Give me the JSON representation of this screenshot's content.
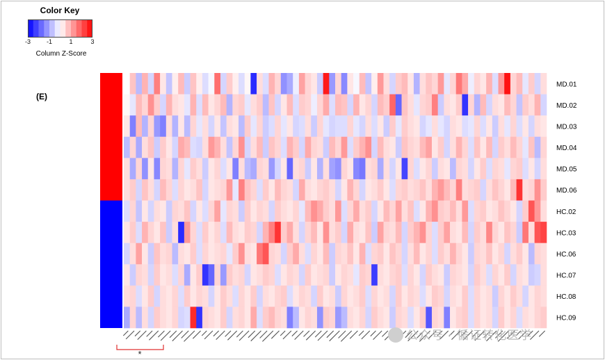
{
  "color_key": {
    "title": "Color Key",
    "ticks": [
      "-3",
      "-1",
      "1",
      "3"
    ],
    "label": "Column Z-Score",
    "low_color": "#0000ff",
    "mid_color": "#ffffff",
    "high_color": "#ff0000"
  },
  "panel_label": "(E)",
  "annotation": "*",
  "watermark": "公众号 · 循证转化医学",
  "chart_data": {
    "type": "heatmap",
    "rows": [
      "MD.01",
      "MD.02",
      "MD.03",
      "MD.04",
      "MD.05",
      "MD.06",
      "HC.02",
      "HC.03",
      "HC.06",
      "HC.07",
      "HC.08",
      "HC.09"
    ],
    "groups": [
      {
        "color": "#ff0000",
        "rows": [
          "MD.01",
          "MD.02",
          "MD.03",
          "MD.04",
          "MD.05",
          "MD.06"
        ]
      },
      {
        "color": "#0000ff",
        "rows": [
          "HC.02",
          "HC.03",
          "HC.06",
          "HC.07",
          "HC.08",
          "HC.09"
        ]
      }
    ],
    "n_columns": 70,
    "column_labels": [],
    "value_range": [
      -3,
      3
    ],
    "values": [
      [
        0,
        0.7,
        -0.8,
        0.9,
        -0.5,
        1.5,
        0.3,
        -0.7,
        0.2,
        0.8,
        -0.6,
        0.7,
        0.2,
        -0.4,
        -0.1,
        1.7,
        -0.5,
        0.6,
        0.2,
        -0.4,
        0.1,
        -2.5,
        0.4,
        -0.4,
        0.9,
        0.5,
        -1.3,
        -1.0,
        -0.2,
        1.1,
        0.5,
        0.3,
        -0.6,
        2.7,
        -1.2,
        0.5,
        -1.4,
        0.3,
        -0.1,
        0.8,
        -0.7,
        0.2,
        1.2,
        0.4,
        -0.5,
        0.6,
        0.8,
        0.3,
        -0.9,
        0.4,
        0.7,
        0.5,
        1.2,
        -0.3,
        0.5,
        1.6,
        1.0,
        -0.2,
        0.5,
        0.3,
        0.9,
        -0.4,
        1.2,
        2.8,
        0.5,
        0.8,
        -0.3,
        0.6,
        -0.5,
        0.4
      ],
      [
        0.1,
        -0.3,
        0.8,
        0.5,
        1.3,
        0.6,
        -0.5,
        0.9,
        0.4,
        0.3,
        -0.3,
        0.9,
        -0.4,
        0.8,
        0.3,
        0.5,
        0.8,
        -0.9,
        0.5,
        0.6,
        -0.3,
        0.4,
        0.6,
        -0.8,
        0.7,
        -0.5,
        0.3,
        0.8,
        -0.4,
        0.6,
        0.5,
        -0.2,
        0.5,
        1.0,
        -0.4,
        0.8,
        0.7,
        -0.5,
        0.9,
        0.3,
        0.5,
        -0.5,
        0.8,
        0.6,
        1.8,
        -1.8,
        0.7,
        0.4,
        -0.3,
        0.5,
        0.6,
        1.5,
        -0.6,
        0.4,
        0.3,
        0.6,
        -2.4,
        0.5,
        -0.9,
        0.8,
        -0.5,
        0.4,
        0.3,
        0.8,
        0.5,
        -0.7,
        0.6,
        0.4,
        0.9,
        -0.5
      ],
      [
        0.3,
        -1.5,
        0.8,
        -0.9,
        0.5,
        -1.2,
        -1.5,
        0.4,
        -0.9,
        0.3,
        -0.8,
        0.5,
        -0.3,
        0.4,
        -0.5,
        0.3,
        -0.7,
        0.4,
        0.3,
        -0.8,
        0.6,
        -0.3,
        0.5,
        -0.6,
        -0.4,
        0.5,
        -0.3,
        0.3,
        -0.5,
        -0.4,
        0.4,
        -0.6,
        0.5,
        -0.3,
        -0.5,
        -0.4,
        -0.4,
        0.5,
        -0.3,
        -0.5,
        0.4,
        -0.4,
        0.3,
        -0.6,
        0.6,
        -0.3,
        0.6,
        0.4,
        0.3,
        -0.5,
        -0.3,
        0.4,
        -0.3,
        -0.5,
        0.4,
        0.3,
        -0.4,
        -0.3,
        0.5,
        -0.4,
        0.3,
        -0.6,
        0.4,
        -0.3,
        0.5,
        -0.4,
        0.3,
        -0.5,
        0.4,
        0.3
      ],
      [
        -0.8,
        0.5,
        -1.0,
        0.4,
        0.7,
        -0.6,
        0.6,
        0.3,
        -0.5,
        1.0,
        0.8,
        -0.4,
        -0.5,
        0.4,
        1.2,
        0.9,
        0.4,
        -0.7,
        0.5,
        1.3,
        -0.5,
        0.4,
        0.8,
        -0.6,
        0.7,
        0.5,
        -0.4,
        0.9,
        0.6,
        -0.5,
        1.0,
        0.5,
        0.4,
        -0.6,
        0.8,
        0.5,
        1.2,
        -0.4,
        0.6,
        0.9,
        1.3,
        -0.5,
        0.8,
        0.4,
        0.3,
        -0.6,
        0.7,
        0.5,
        0.4,
        0.8,
        1.1,
        0.3,
        0.6,
        -0.5,
        0.4,
        0.9,
        0.5,
        -0.4,
        0.7,
        0.3,
        0.8,
        -0.5,
        0.6,
        0.4,
        0.8,
        0.5,
        -0.3,
        0.7,
        -0.8,
        0.5
      ],
      [
        0.4,
        -1.0,
        0.5,
        -1.3,
        0.3,
        -1.4,
        0.5,
        0.4,
        -0.9,
        0.5,
        -0.3,
        0.6,
        0.4,
        -0.6,
        0.3,
        0.5,
        -0.4,
        0.3,
        -1.5,
        0.4,
        -0.8,
        -1.0,
        0.5,
        0.4,
        -1.2,
        -0.5,
        0.3,
        -1.8,
        0.4,
        0.5,
        -0.6,
        0.3,
        -0.9,
        0.4,
        -1.1,
        -1.3,
        0.5,
        0.3,
        -1.4,
        -1.6,
        0.4,
        0.5,
        -1.0,
        0.4,
        -0.5,
        0.3,
        -2.2,
        0.5,
        -0.4,
        0.3,
        0.5,
        -0.6,
        0.4,
        0.3,
        -0.8,
        0.5,
        0.4,
        -0.5,
        0.3,
        0.6,
        -0.4,
        0.5,
        0.4,
        -0.3,
        0.5,
        0.6,
        -0.4,
        0.3,
        -0.5,
        0.4
      ],
      [
        0.4,
        0.6,
        -0.5,
        0.7,
        0.4,
        -0.5,
        0.8,
        0.5,
        -0.4,
        0.5,
        0.3,
        0.4,
        0.7,
        -0.5,
        0.3,
        0.4,
        0.5,
        1.2,
        -0.3,
        1.5,
        0.7,
        0.5,
        -0.4,
        0.6,
        0.3,
        0.8,
        0.5,
        0.4,
        -0.5,
        1.0,
        0.4,
        0.3,
        0.5,
        0.6,
        0.4,
        -0.5,
        0.3,
        0.9,
        0.5,
        -0.5,
        0.3,
        0.4,
        0.6,
        0.3,
        -0.4,
        0.5,
        0.6,
        0.4,
        0.5,
        0.7,
        0.4,
        0.9,
        1.2,
        0.8,
        0.5,
        1.5,
        0.4,
        0.5,
        0.6,
        -0.5,
        0.4,
        0.7,
        0.5,
        0.3,
        0.8,
        2.4,
        0.4,
        0.5,
        1.3,
        0.6
      ],
      [
        -0.4,
        0.5,
        -0.7,
        0.3,
        -0.5,
        0.4,
        0.3,
        -0.6,
        0.5,
        0.4,
        0.7,
        -0.5,
        0.3,
        -0.4,
        0.5,
        1.1,
        -0.3,
        0.5,
        0.4,
        -0.6,
        0.6,
        0.3,
        0.5,
        0.4,
        -0.5,
        0.6,
        0.4,
        0.3,
        0.5,
        -0.3,
        0.8,
        1.3,
        1.0,
        0.6,
        0.4,
        1.2,
        -0.4,
        0.5,
        1.0,
        0.4,
        0.6,
        -0.5,
        0.3,
        0.8,
        0.5,
        1.1,
        0.4,
        0.7,
        -0.4,
        0.3,
        0.9,
        1.3,
        0.6,
        0.5,
        0.8,
        0.4,
        1.2,
        -0.4,
        0.5,
        0.6,
        0.3,
        0.4,
        0.7,
        0.5,
        0.3,
        -0.5,
        0.6,
        2.0,
        1.2,
        0.4
      ],
      [
        0.3,
        0.6,
        -0.4,
        0.9,
        0.5,
        0.3,
        0.7,
        -0.6,
        0.4,
        -2.5,
        1.2,
        0.5,
        -0.4,
        0.6,
        0.3,
        0.5,
        -0.4,
        0.8,
        0.4,
        0.3,
        0.6,
        0.5,
        -0.5,
        0.9,
        1.5,
        2.4,
        0.6,
        1.0,
        0.4,
        -0.5,
        0.5,
        0.8,
        0.3,
        1.3,
        0.4,
        0.6,
        -0.5,
        1.0,
        0.4,
        0.3,
        0.7,
        -0.6,
        1.1,
        0.5,
        0.4,
        0.8,
        -0.5,
        0.6,
        0.9,
        1.3,
        0.5,
        -0.4,
        0.6,
        1.1,
        0.4,
        0.3,
        0.8,
        -0.5,
        0.6,
        0.4,
        1.4,
        0.5,
        0.3,
        0.7,
        0.5,
        -0.6,
        1.6,
        0.4,
        2.0,
        2.2
      ],
      [
        -0.5,
        0.4,
        1.1,
        0.3,
        -0.6,
        0.7,
        0.4,
        0.5,
        -0.8,
        0.4,
        0.3,
        0.6,
        -0.4,
        0.5,
        0.3,
        0.4,
        0.5,
        -0.3,
        0.6,
        1.3,
        0.4,
        0.3,
        1.6,
        2.0,
        0.5,
        0.4,
        -0.5,
        0.6,
        1.0,
        0.4,
        -0.4,
        0.5,
        0.3,
        0.8,
        -0.6,
        0.5,
        0.4,
        0.7,
        0.3,
        0.9,
        -0.4,
        0.5,
        0.6,
        0.3,
        0.7,
        0.5,
        -0.5,
        0.4,
        0.8,
        0.3,
        0.5,
        -0.4,
        0.6,
        0.4,
        0.9,
        0.5,
        0.3,
        -0.6,
        0.5,
        0.4,
        0.7,
        0.3,
        0.5,
        -0.5,
        0.4,
        0.6,
        0.3,
        -0.8,
        0.5,
        0.4
      ],
      [
        0.3,
        -0.6,
        0.5,
        0.4,
        -0.5,
        0.6,
        0.3,
        0.4,
        -0.4,
        0.5,
        -1.0,
        0.3,
        0.6,
        -2.4,
        -1.8,
        0.5,
        -1.2,
        0.6,
        0.4,
        0.5,
        -0.5,
        0.3,
        0.4,
        0.6,
        0.5,
        -0.4,
        0.3,
        0.5,
        0.4,
        -0.5,
        0.6,
        0.3,
        0.4,
        0.5,
        -0.6,
        0.3,
        0.5,
        0.4,
        -0.3,
        0.6,
        0.5,
        -2.3,
        0.4,
        0.3,
        0.5,
        0.6,
        -0.4,
        0.5,
        0.3,
        -0.5,
        0.6,
        0.4,
        0.3,
        -0.6,
        0.5,
        0.4,
        0.3,
        -0.5,
        0.6,
        0.4,
        -0.4,
        0.5,
        0.3,
        0.6,
        -0.5,
        0.4,
        0.3,
        -0.6,
        -0.5,
        0.4
      ],
      [
        0.4,
        0.5,
        -0.4,
        0.3,
        0.6,
        -0.5,
        0.4,
        0.3,
        0.5,
        -0.4,
        0.6,
        0.3,
        0.5,
        0.4,
        -0.5,
        0.3,
        0.6,
        0.4,
        -0.4,
        0.5,
        0.3,
        0.6,
        -0.5,
        0.4,
        0.3,
        0.5,
        0.6,
        -0.4,
        0.3,
        0.5,
        0.4,
        -0.5,
        0.6,
        0.3,
        0.4,
        -0.6,
        0.5,
        0.3,
        0.4,
        0.6,
        -0.4,
        0.5,
        0.3,
        0.4,
        -0.5,
        0.6,
        0.3,
        0.5,
        0.4,
        -0.4,
        0.3,
        0.6,
        0.5,
        -0.5,
        0.4,
        0.3,
        0.6,
        -0.4,
        0.5,
        0.3,
        0.4,
        -0.6,
        0.5,
        0.3,
        0.6,
        0.4,
        -0.5,
        0.3,
        0.5,
        0.4
      ],
      [
        -1.0,
        0.5,
        -0.8,
        0.4,
        -0.5,
        0.6,
        0.4,
        0.3,
        0.5,
        -0.5,
        -0.4,
        2.5,
        -2.4,
        0.5,
        0.4,
        0.3,
        0.6,
        -0.5,
        0.4,
        0.5,
        0.3,
        1.0,
        -0.4,
        0.6,
        0.8,
        0.5,
        0.4,
        -1.5,
        -0.8,
        0.3,
        0.5,
        0.4,
        -1.3,
        0.6,
        0.5,
        -1.2,
        -0.8,
        0.4,
        0.3,
        0.5,
        -0.5,
        0.6,
        0.4,
        0.3,
        -0.6,
        0.5,
        0.4,
        -0.4,
        0.3,
        0.6,
        -2.0,
        0.5,
        0.4,
        -1.5,
        0.3,
        0.5,
        0.6,
        -0.4,
        0.5,
        0.3,
        0.4,
        -0.5,
        0.6,
        0.3,
        0.5,
        -0.4,
        0.4,
        0.3,
        0.5,
        0.6
      ]
    ]
  }
}
